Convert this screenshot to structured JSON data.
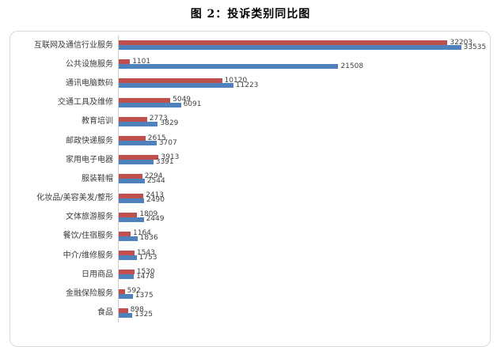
{
  "page_title": "图 2：投诉类别同比图",
  "colors": {
    "series_red": "#C0504D",
    "series_blue": "#4F81BD",
    "frame_border": "#D9D9D9",
    "axis_line": "#CDCDCD",
    "value_label_text": "#3F3F3F",
    "category_text": "#3B3B3B"
  },
  "chart_data": {
    "type": "bar",
    "orientation": "horizontal",
    "title": "图 2：投诉类别同比图",
    "value_labels_shown": true,
    "legend_visible": false,
    "x_axis_ticks_visible": false,
    "xlim": [
      0,
      36500
    ],
    "categories": [
      "互联网及通信行业服务",
      "公共设施服务",
      "通讯电脑数码",
      "交通工具及维修",
      "教育培训",
      "邮政快递服务",
      "家用电子电器",
      "服装鞋帽",
      "化妆品/美容美发/整形",
      "文体旅游服务",
      "餐饮/住宿服务",
      "中介/维修服务",
      "日用商品",
      "金融保险服务",
      "食品"
    ],
    "series": [
      {
        "name": "red",
        "color": "#C0504D",
        "values": [
          32203,
          1101,
          10120,
          5049,
          2773,
          2615,
          3913,
          2294,
          2413,
          1809,
          1164,
          1543,
          1530,
          592,
          898
        ]
      },
      {
        "name": "blue",
        "color": "#4F81BD",
        "values": [
          33535,
          21508,
          11223,
          6091,
          3829,
          3707,
          3391,
          2544,
          2490,
          2449,
          1836,
          1753,
          1478,
          1375,
          1325
        ]
      }
    ]
  }
}
